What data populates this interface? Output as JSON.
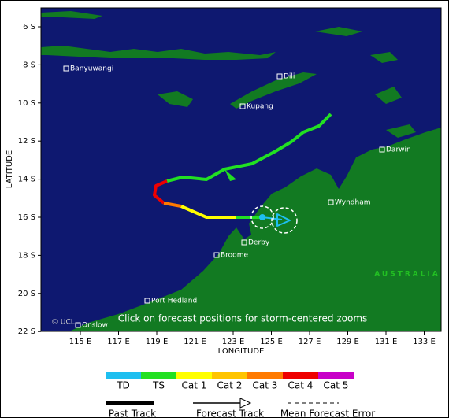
{
  "axes": {
    "x_label": "LONGITUDE",
    "y_label": "LATITUDE",
    "x_ticks": [
      "115 E",
      "117 E",
      "119 E",
      "121 E",
      "123 E",
      "125 E",
      "127 E",
      "129 E",
      "131 E",
      "133 E"
    ],
    "y_ticks": [
      "6 S",
      "8 S",
      "10 S",
      "12 S",
      "14 S",
      "16 S",
      "18 S",
      "20 S",
      "22 S"
    ]
  },
  "places": [
    "Banyuwangi",
    "Dili",
    "Kupang",
    "Darwin",
    "Wyndham",
    "Derby",
    "Broome",
    "Port Hedland",
    "Onslow"
  ],
  "region_label": "AUSTRALIA",
  "credit": "© UCL",
  "caption": "Click on forecast positions for storm-centered zooms",
  "intensity_legend": [
    {
      "label": "TD",
      "color": "#1ebff0"
    },
    {
      "label": "TS",
      "color": "#22e022"
    },
    {
      "label": "Cat 1",
      "color": "#ffff00"
    },
    {
      "label": "Cat 2",
      "color": "#ffc400"
    },
    {
      "label": "Cat 3",
      "color": "#ff7a00"
    },
    {
      "label": "Cat 4",
      "color": "#ee0000"
    },
    {
      "label": "Cat 5",
      "color": "#c800c8"
    }
  ],
  "track_legend": [
    "Past Track",
    "Forecast Track",
    "Mean Forecast Error"
  ]
}
